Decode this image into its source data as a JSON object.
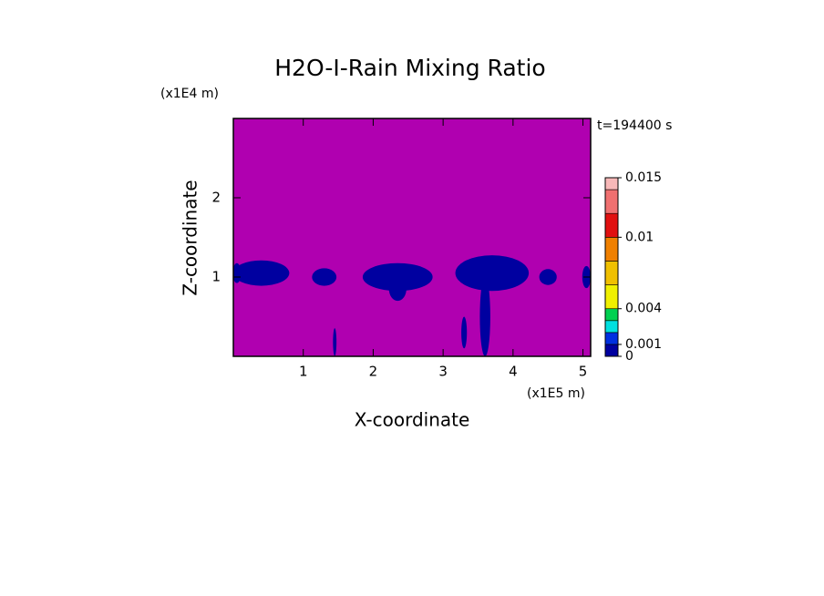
{
  "chart_data": {
    "type": "contour",
    "title": "H2O-I-Rain Mixing Ratio",
    "xlabel": "X-coordinate",
    "ylabel": "Z-coordinate",
    "x_unit_label": "(x1E5 m)",
    "y_unit_label": "(x1E4 m)",
    "annotation": "t=194400 s",
    "xlim": [
      0,
      5.11
    ],
    "ylim": [
      0,
      3
    ],
    "xticks": [
      1,
      2,
      3,
      4,
      5
    ],
    "yticks": [
      1,
      2
    ],
    "background_color": "#b000b0",
    "features": [
      {
        "x": 0.4,
        "z": 1.05,
        "width": 0.8,
        "height": 0.32,
        "value": 0.0005
      },
      {
        "x": 0.05,
        "z": 1.05,
        "width": 0.12,
        "height": 0.25,
        "value": 0.0005
      },
      {
        "x": 1.3,
        "z": 1.0,
        "width": 0.35,
        "height": 0.22,
        "value": 0.0005
      },
      {
        "x": 2.35,
        "z": 1.0,
        "width": 1.0,
        "height": 0.35,
        "value": 0.0005
      },
      {
        "x": 2.35,
        "z": 0.85,
        "width": 0.25,
        "height": 0.3,
        "value": 0.0005
      },
      {
        "x": 3.7,
        "z": 1.05,
        "width": 1.05,
        "height": 0.45,
        "value": 0.0005
      },
      {
        "x": 3.6,
        "z": 0.5,
        "width": 0.15,
        "height": 1.0,
        "value": 0.0005
      },
      {
        "x": 4.5,
        "z": 1.0,
        "width": 0.25,
        "height": 0.2,
        "value": 0.0005
      },
      {
        "x": 5.05,
        "z": 1.0,
        "width": 0.12,
        "height": 0.28,
        "value": 0.0005
      },
      {
        "x": 1.45,
        "z": 0.18,
        "width": 0.05,
        "height": 0.35,
        "value": 0.0005
      },
      {
        "x": 3.3,
        "z": 0.3,
        "width": 0.08,
        "height": 0.4,
        "value": 0.0005
      }
    ],
    "colorbar": {
      "levels": [
        0,
        0.001,
        0.002,
        0.003,
        0.004,
        0.006,
        0.008,
        0.01,
        0.012,
        0.014,
        0.015
      ],
      "colors": [
        "#0000a0",
        "#0030e0",
        "#00e0e0",
        "#00d050",
        "#f0f000",
        "#f0c000",
        "#f08000",
        "#e01010",
        "#f07070",
        "#f8b8b8"
      ],
      "ticks": [
        0,
        0.001,
        0.004,
        0.01,
        0.015
      ]
    }
  }
}
